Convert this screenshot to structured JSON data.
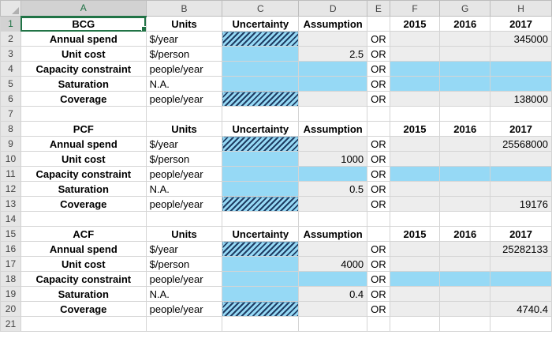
{
  "columns": [
    "A",
    "B",
    "C",
    "D",
    "E",
    "F",
    "G",
    "H"
  ],
  "selected_cell": "A1",
  "rows": [
    {
      "n": "1",
      "cells": [
        {
          "v": "BCG",
          "cls": "bold c"
        },
        {
          "v": "Units",
          "cls": "bold c"
        },
        {
          "v": "Uncertainty",
          "cls": "bold c"
        },
        {
          "v": "Assumption",
          "cls": "bold c"
        },
        {
          "v": "",
          "cls": ""
        },
        {
          "v": "2015",
          "cls": "bold c"
        },
        {
          "v": "2016",
          "cls": "bold c"
        },
        {
          "v": "2017",
          "cls": "bold c"
        }
      ]
    },
    {
      "n": "2",
      "cells": [
        {
          "v": "Annual spend",
          "cls": "bold c"
        },
        {
          "v": "$/year",
          "cls": ""
        },
        {
          "v": "",
          "cls": "hatch"
        },
        {
          "v": "",
          "cls": "grey"
        },
        {
          "v": "OR",
          "cls": ""
        },
        {
          "v": "",
          "cls": "grey"
        },
        {
          "v": "",
          "cls": "grey"
        },
        {
          "v": "345000",
          "cls": "grey r"
        }
      ]
    },
    {
      "n": "3",
      "cells": [
        {
          "v": "Unit cost",
          "cls": "bold c"
        },
        {
          "v": "$/person",
          "cls": ""
        },
        {
          "v": "",
          "cls": "blue"
        },
        {
          "v": "2.5",
          "cls": "grey r"
        },
        {
          "v": "OR",
          "cls": ""
        },
        {
          "v": "",
          "cls": "grey"
        },
        {
          "v": "",
          "cls": "grey"
        },
        {
          "v": "",
          "cls": "grey"
        }
      ]
    },
    {
      "n": "4",
      "cells": [
        {
          "v": "Capacity constraint",
          "cls": "bold c"
        },
        {
          "v": "people/year",
          "cls": ""
        },
        {
          "v": "",
          "cls": "blue"
        },
        {
          "v": "",
          "cls": "blue"
        },
        {
          "v": "OR",
          "cls": ""
        },
        {
          "v": "",
          "cls": "blue"
        },
        {
          "v": "",
          "cls": "blue"
        },
        {
          "v": "",
          "cls": "blue"
        }
      ]
    },
    {
      "n": "5",
      "cells": [
        {
          "v": "Saturation",
          "cls": "bold c"
        },
        {
          "v": "N.A.",
          "cls": ""
        },
        {
          "v": "",
          "cls": "blue"
        },
        {
          "v": "",
          "cls": "blue"
        },
        {
          "v": "OR",
          "cls": ""
        },
        {
          "v": "",
          "cls": "blue"
        },
        {
          "v": "",
          "cls": "blue"
        },
        {
          "v": "",
          "cls": "blue"
        }
      ]
    },
    {
      "n": "6",
      "cells": [
        {
          "v": "Coverage",
          "cls": "bold c"
        },
        {
          "v": "people/year",
          "cls": ""
        },
        {
          "v": "",
          "cls": "hatch"
        },
        {
          "v": "",
          "cls": "grey"
        },
        {
          "v": "OR",
          "cls": ""
        },
        {
          "v": "",
          "cls": "grey"
        },
        {
          "v": "",
          "cls": "grey"
        },
        {
          "v": "138000",
          "cls": "grey r"
        }
      ]
    },
    {
      "n": "7",
      "cells": [
        {
          "v": "",
          "cls": ""
        },
        {
          "v": "",
          "cls": ""
        },
        {
          "v": "",
          "cls": ""
        },
        {
          "v": "",
          "cls": ""
        },
        {
          "v": "",
          "cls": ""
        },
        {
          "v": "",
          "cls": ""
        },
        {
          "v": "",
          "cls": ""
        },
        {
          "v": "",
          "cls": ""
        }
      ]
    },
    {
      "n": "8",
      "cells": [
        {
          "v": "PCF",
          "cls": "bold c"
        },
        {
          "v": "Units",
          "cls": "bold c"
        },
        {
          "v": "Uncertainty",
          "cls": "bold c"
        },
        {
          "v": "Assumption",
          "cls": "bold c"
        },
        {
          "v": "",
          "cls": ""
        },
        {
          "v": "2015",
          "cls": "bold c"
        },
        {
          "v": "2016",
          "cls": "bold c"
        },
        {
          "v": "2017",
          "cls": "bold c"
        }
      ]
    },
    {
      "n": "9",
      "cells": [
        {
          "v": "Annual spend",
          "cls": "bold c"
        },
        {
          "v": "$/year",
          "cls": ""
        },
        {
          "v": "",
          "cls": "hatch"
        },
        {
          "v": "",
          "cls": "grey"
        },
        {
          "v": "OR",
          "cls": ""
        },
        {
          "v": "",
          "cls": "grey"
        },
        {
          "v": "",
          "cls": "grey"
        },
        {
          "v": "25568000",
          "cls": "grey r"
        }
      ]
    },
    {
      "n": "10",
      "cells": [
        {
          "v": "Unit cost",
          "cls": "bold c"
        },
        {
          "v": "$/person",
          "cls": ""
        },
        {
          "v": "",
          "cls": "blue"
        },
        {
          "v": "1000",
          "cls": "grey r"
        },
        {
          "v": "OR",
          "cls": ""
        },
        {
          "v": "",
          "cls": "grey"
        },
        {
          "v": "",
          "cls": "grey"
        },
        {
          "v": "",
          "cls": "grey"
        }
      ]
    },
    {
      "n": "11",
      "cells": [
        {
          "v": "Capacity constraint",
          "cls": "bold c"
        },
        {
          "v": "people/year",
          "cls": ""
        },
        {
          "v": "",
          "cls": "blue"
        },
        {
          "v": "",
          "cls": "blue"
        },
        {
          "v": "OR",
          "cls": ""
        },
        {
          "v": "",
          "cls": "blue"
        },
        {
          "v": "",
          "cls": "blue"
        },
        {
          "v": "",
          "cls": "blue"
        }
      ]
    },
    {
      "n": "12",
      "cells": [
        {
          "v": "Saturation",
          "cls": "bold c"
        },
        {
          "v": "N.A.",
          "cls": ""
        },
        {
          "v": "",
          "cls": "blue"
        },
        {
          "v": "0.5",
          "cls": "grey r"
        },
        {
          "v": "OR",
          "cls": ""
        },
        {
          "v": "",
          "cls": "grey"
        },
        {
          "v": "",
          "cls": "grey"
        },
        {
          "v": "",
          "cls": "grey"
        }
      ]
    },
    {
      "n": "13",
      "cells": [
        {
          "v": "Coverage",
          "cls": "bold c"
        },
        {
          "v": "people/year",
          "cls": ""
        },
        {
          "v": "",
          "cls": "hatch"
        },
        {
          "v": "",
          "cls": "grey"
        },
        {
          "v": "OR",
          "cls": ""
        },
        {
          "v": "",
          "cls": "grey"
        },
        {
          "v": "",
          "cls": "grey"
        },
        {
          "v": "19176",
          "cls": "grey r"
        }
      ]
    },
    {
      "n": "14",
      "cells": [
        {
          "v": "",
          "cls": ""
        },
        {
          "v": "",
          "cls": ""
        },
        {
          "v": "",
          "cls": ""
        },
        {
          "v": "",
          "cls": ""
        },
        {
          "v": "",
          "cls": ""
        },
        {
          "v": "",
          "cls": ""
        },
        {
          "v": "",
          "cls": ""
        },
        {
          "v": "",
          "cls": ""
        }
      ]
    },
    {
      "n": "15",
      "cells": [
        {
          "v": "ACF",
          "cls": "bold c"
        },
        {
          "v": "Units",
          "cls": "bold c"
        },
        {
          "v": "Uncertainty",
          "cls": "bold c"
        },
        {
          "v": "Assumption",
          "cls": "bold c"
        },
        {
          "v": "",
          "cls": ""
        },
        {
          "v": "2015",
          "cls": "bold c"
        },
        {
          "v": "2016",
          "cls": "bold c"
        },
        {
          "v": "2017",
          "cls": "bold c"
        }
      ]
    },
    {
      "n": "16",
      "cells": [
        {
          "v": "Annual spend",
          "cls": "bold c"
        },
        {
          "v": "$/year",
          "cls": ""
        },
        {
          "v": "",
          "cls": "hatch"
        },
        {
          "v": "",
          "cls": "grey"
        },
        {
          "v": "OR",
          "cls": ""
        },
        {
          "v": "",
          "cls": "grey"
        },
        {
          "v": "",
          "cls": "grey"
        },
        {
          "v": "25282133",
          "cls": "grey r"
        }
      ]
    },
    {
      "n": "17",
      "cells": [
        {
          "v": "Unit cost",
          "cls": "bold c"
        },
        {
          "v": "$/person",
          "cls": ""
        },
        {
          "v": "",
          "cls": "blue"
        },
        {
          "v": "4000",
          "cls": "grey r"
        },
        {
          "v": "OR",
          "cls": ""
        },
        {
          "v": "",
          "cls": "grey"
        },
        {
          "v": "",
          "cls": "grey"
        },
        {
          "v": "",
          "cls": "grey"
        }
      ]
    },
    {
      "n": "18",
      "cells": [
        {
          "v": "Capacity constraint",
          "cls": "bold c"
        },
        {
          "v": "people/year",
          "cls": ""
        },
        {
          "v": "",
          "cls": "blue"
        },
        {
          "v": "",
          "cls": "blue"
        },
        {
          "v": "OR",
          "cls": ""
        },
        {
          "v": "",
          "cls": "blue"
        },
        {
          "v": "",
          "cls": "blue"
        },
        {
          "v": "",
          "cls": "blue"
        }
      ]
    },
    {
      "n": "19",
      "cells": [
        {
          "v": "Saturation",
          "cls": "bold c"
        },
        {
          "v": "N.A.",
          "cls": ""
        },
        {
          "v": "",
          "cls": "blue"
        },
        {
          "v": "0.4",
          "cls": "grey r"
        },
        {
          "v": "OR",
          "cls": ""
        },
        {
          "v": "",
          "cls": "grey"
        },
        {
          "v": "",
          "cls": "grey"
        },
        {
          "v": "",
          "cls": "grey"
        }
      ]
    },
    {
      "n": "20",
      "cells": [
        {
          "v": "Coverage",
          "cls": "bold c"
        },
        {
          "v": "people/year",
          "cls": ""
        },
        {
          "v": "",
          "cls": "hatch"
        },
        {
          "v": "",
          "cls": "grey"
        },
        {
          "v": "OR",
          "cls": ""
        },
        {
          "v": "",
          "cls": "grey"
        },
        {
          "v": "",
          "cls": "grey"
        },
        {
          "v": "4740.4",
          "cls": "grey r"
        }
      ]
    },
    {
      "n": "21",
      "cells": [
        {
          "v": "",
          "cls": ""
        },
        {
          "v": "",
          "cls": ""
        },
        {
          "v": "",
          "cls": ""
        },
        {
          "v": "",
          "cls": ""
        },
        {
          "v": "",
          "cls": ""
        },
        {
          "v": "",
          "cls": ""
        },
        {
          "v": "",
          "cls": ""
        },
        {
          "v": "",
          "cls": ""
        }
      ]
    }
  ]
}
